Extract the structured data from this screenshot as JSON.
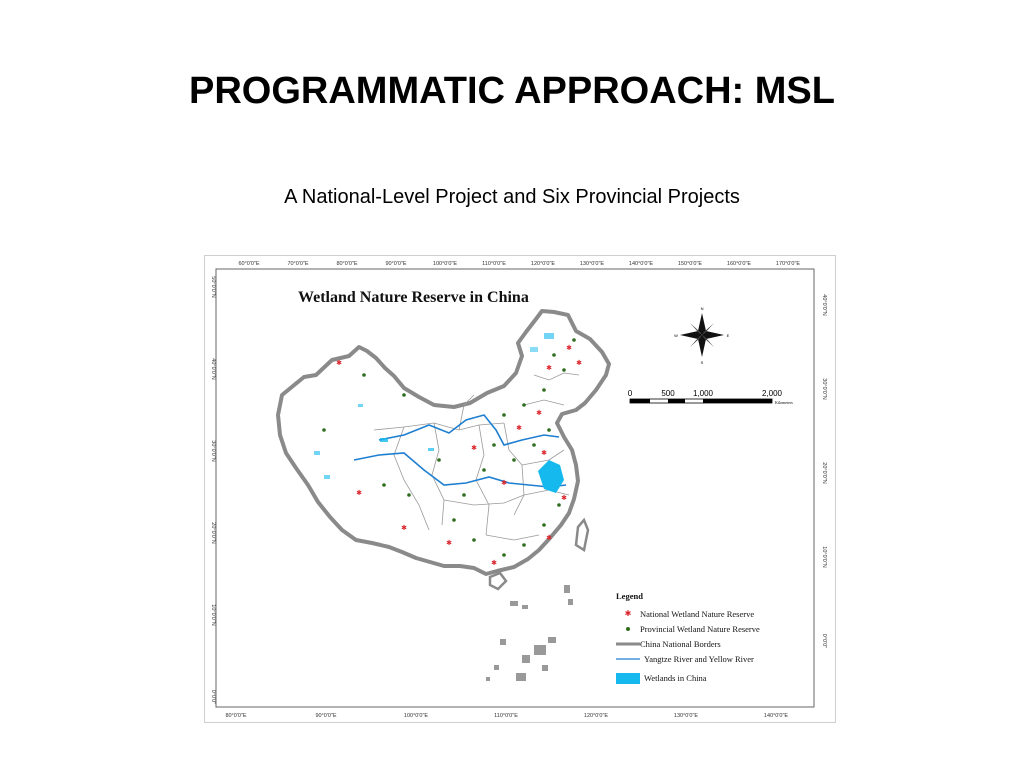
{
  "slide": {
    "title": "PROGRAMMATIC APPROACH: MSL",
    "subtitle": "A National-Level Project and Six Provincial Projects"
  },
  "map": {
    "title": "Wetland Nature Reserve in China",
    "top_ticks": [
      "60°0'0\"E",
      "70°0'0\"E",
      "80°0'0\"E",
      "90°0'0\"E",
      "100°0'0\"E",
      "110°0'0\"E",
      "120°0'0\"E",
      "130°0'0\"E",
      "140°0'0\"E",
      "150°0'0\"E",
      "160°0'0\"E",
      "170°0'0\"E"
    ],
    "bottom_ticks": [
      "80°0'0\"E",
      "90°0'0\"E",
      "100°0'0\"E",
      "110°0'0\"E",
      "120°0'0\"E",
      "130°0'0\"E",
      "140°0'0\"E"
    ],
    "left_ticks": [
      "50°0'0\"N",
      "40°0'0\"N",
      "30°0'0\"N",
      "20°0'0\"N",
      "10°0'0\"N",
      "0°0'0\""
    ],
    "right_ticks": [
      "40°0'0\"N",
      "30°0'0\"N",
      "20°0'0\"N",
      "10°0'0\"N",
      "0°0'0\""
    ],
    "scale": {
      "labels": [
        "0",
        "500",
        "1,000",
        "2,000"
      ],
      "unit": "Kilometers"
    },
    "compass": {
      "n": "N",
      "s": "S",
      "e": "E",
      "w": "W"
    },
    "legend": {
      "title": "Legend",
      "items": [
        "National Wetland Nature Reserve",
        "Provincial Wetland Nature Reserve",
        "China National Borders",
        "Yangtze River  and Yellow River",
        "Wetlands in China"
      ]
    },
    "colors": {
      "national": "#d9232a",
      "provincial": "#2f6d1f",
      "border": "#8a8a8a",
      "river": "#1e7fd0",
      "wetland": "#16b9ee"
    }
  }
}
